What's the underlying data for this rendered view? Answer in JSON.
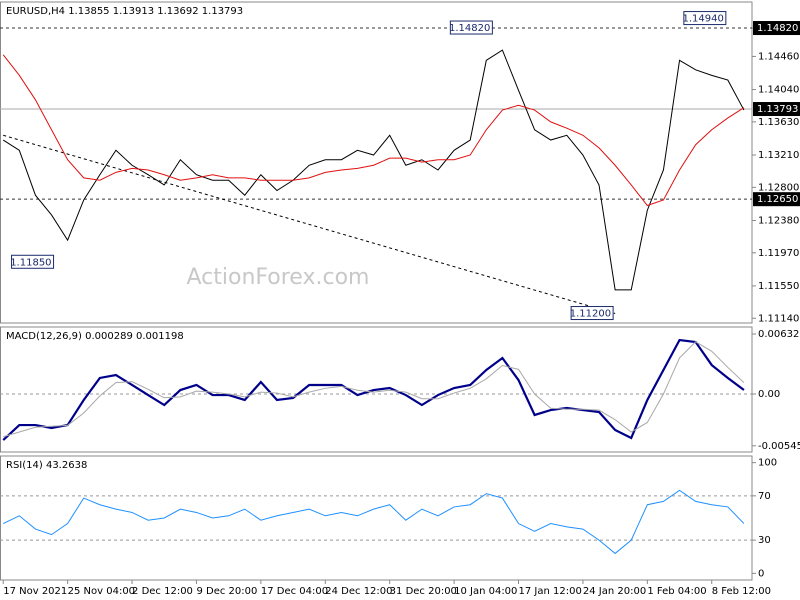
{
  "chart_data": [
    {
      "type": "line",
      "title": "EURUSD,H4  1.13855 1.13913 1.13692 1.13793",
      "watermark": "ActionForex.com",
      "x": [
        0,
        2,
        4,
        6,
        8,
        10,
        12,
        14,
        16,
        18,
        20,
        22,
        24,
        26,
        28,
        30,
        32,
        34,
        36,
        38,
        40,
        42,
        44,
        46,
        48,
        50,
        52,
        54,
        56,
        58,
        60,
        62,
        64,
        66,
        68,
        70,
        72,
        74,
        76,
        78,
        80,
        82,
        84,
        86,
        88,
        90,
        92
      ],
      "xlim": [
        -0.4,
        93
      ],
      "ylim": [
        1.1108,
        1.1515
      ],
      "yticks": [
        {
          "value": 1.1482,
          "label": "1.14820"
        },
        {
          "value": 1.1446,
          "label": "1.14460"
        },
        {
          "value": 1.1404,
          "label": "1.14040"
        },
        {
          "value": 1.1363,
          "label": "1.13630"
        },
        {
          "value": 1.1321,
          "label": "1.13210"
        },
        {
          "value": 1.128,
          "label": "1.12800"
        },
        {
          "value": 1.1238,
          "label": "1.12380"
        },
        {
          "value": 1.1197,
          "label": "1.11970"
        },
        {
          "value": 1.1155,
          "label": "1.11550"
        },
        {
          "value": 1.1114,
          "label": "1.11140"
        }
      ],
      "series": [
        {
          "color": "#000000",
          "values": [
            1.134,
            1.1327,
            1.127,
            1.1245,
            1.1213,
            1.1264,
            1.1296,
            1.1327,
            1.1308,
            1.1296,
            1.1283,
            1.1315,
            1.1296,
            1.1289,
            1.1289,
            1.127,
            1.1296,
            1.1276,
            1.1289,
            1.1308,
            1.1315,
            1.1315,
            1.1327,
            1.1321,
            1.1346,
            1.1308,
            1.1315,
            1.1302,
            1.1327,
            1.134,
            1.1441,
            1.1454,
            1.1403,
            1.1353,
            1.134,
            1.1346,
            1.1321,
            1.1283,
            1.115,
            1.115,
            1.1251,
            1.1302,
            1.1441,
            1.1429,
            1.1422,
            1.1416,
            1.1378
          ]
        },
        {
          "color": "#e01010",
          "values": [
            1.1448,
            1.1422,
            1.1391,
            1.1353,
            1.1315,
            1.1292,
            1.1289,
            1.1299,
            1.1304,
            1.1302,
            1.1296,
            1.1289,
            1.1292,
            1.1296,
            1.1292,
            1.1292,
            1.1289,
            1.1289,
            1.1289,
            1.1292,
            1.1299,
            1.1302,
            1.1304,
            1.1308,
            1.1317,
            1.1317,
            1.1312,
            1.1315,
            1.1315,
            1.1321,
            1.1353,
            1.1378,
            1.1384,
            1.1378,
            1.1363,
            1.1355,
            1.1346,
            1.133,
            1.1308,
            1.1283,
            1.1257,
            1.1264,
            1.1302,
            1.1334,
            1.1353,
            1.1368,
            1.1381
          ]
        }
      ],
      "levels": [
        {
          "value": 1.1482,
          "label": "1.14820"
        },
        {
          "value": 1.1265,
          "label": "1.12650"
        }
      ],
      "current": {
        "value": 1.13793,
        "label": "1.13793"
      },
      "annotations": [
        {
          "x": 61,
          "value": 1.1482,
          "label": "1.14820"
        },
        {
          "x": 90,
          "value": 1.1494,
          "label": "1.14940"
        },
        {
          "x": 6.5,
          "value": 1.1185,
          "label": "1.11850"
        },
        {
          "x": 76,
          "value": 1.112,
          "label": "1.11200"
        }
      ],
      "trendline": {
        "x": [
          0,
          76
        ],
        "values": [
          1.1346,
          1.112
        ]
      }
    },
    {
      "type": "line",
      "title": "MACD(12,26,9) 0.000289 0.001198",
      "x": [
        0,
        2,
        4,
        6,
        8,
        10,
        12,
        14,
        16,
        18,
        20,
        22,
        24,
        26,
        28,
        30,
        32,
        34,
        36,
        38,
        40,
        42,
        44,
        46,
        48,
        50,
        52,
        54,
        56,
        58,
        60,
        62,
        64,
        66,
        68,
        70,
        72,
        74,
        76,
        78,
        80,
        82,
        84,
        86,
        88,
        90,
        92
      ],
      "xlim": [
        -0.4,
        93
      ],
      "ylim": [
        -0.00611,
        0.00706
      ],
      "yticks": [
        {
          "value": 0.00632,
          "label": "0.00632"
        },
        {
          "value": 0,
          "label": "0.00"
        },
        {
          "value": -0.005455,
          "label": "-0.005455"
        }
      ],
      "zero_line": 0,
      "series": [
        {
          "color": "#00008b",
          "values": [
            -0.00485,
            -0.00327,
            -0.00327,
            -0.00358,
            -0.00327,
            -0.00063,
            0.00169,
            0.002,
            0.00095,
            -0.00011,
            -0.00116,
            0.00042,
            0.00095,
            -0.00011,
            -0.00011,
            -0.00063,
            0.00126,
            -0.00063,
            -0.00042,
            0.00095,
            0.00095,
            0.00095,
            -0.00011,
            0.00042,
            0.00063,
            -0.00011,
            -0.00116,
            -0.00011,
            0.00063,
            0.00095,
            0.00253,
            0.00379,
            0.00147,
            -0.00221,
            -0.00169,
            -0.00147,
            -0.00169,
            -0.0019,
            -0.00379,
            -0.00463,
            -0.00063,
            0.00253,
            0.00569,
            0.00548,
            0.00305,
            0.00169,
            0.00042
          ]
        },
        {
          "color": "#a8a8a8",
          "values": [
            -0.0045,
            -0.004,
            -0.0035,
            -0.0034,
            -0.0033,
            -0.002,
            -0.0002,
            0.0012,
            0.0013,
            0.0005,
            -0.0004,
            -0.0003,
            0.0003,
            0.0002,
            0,
            -0.0003,
            0.0002,
            0.0001,
            -0.0003,
            0.0002,
            0.0006,
            0.0008,
            0.0004,
            0.0002,
            0.0004,
            0.0002,
            -0.0005,
            -0.0005,
            0.0001,
            0.0006,
            0.0016,
            0.003,
            0.0026,
            0,
            -0.0015,
            -0.0016,
            -0.0016,
            -0.0017,
            -0.0027,
            -0.004,
            -0.003,
            0,
            0.0038,
            0.0055,
            0.0045,
            0.0028,
            0.0012
          ]
        }
      ]
    },
    {
      "type": "line",
      "title": "RSI(14) 43.2638",
      "x": [
        0,
        2,
        4,
        6,
        8,
        10,
        12,
        14,
        16,
        18,
        20,
        22,
        24,
        26,
        28,
        30,
        32,
        34,
        36,
        38,
        40,
        42,
        44,
        46,
        48,
        50,
        52,
        54,
        56,
        58,
        60,
        62,
        64,
        66,
        68,
        70,
        72,
        74,
        76,
        78,
        80,
        82,
        84,
        86,
        88,
        90,
        92
      ],
      "xlim": [
        -0.4,
        93
      ],
      "ylim": [
        -6,
        106
      ],
      "yticks": [
        0,
        30,
        70,
        100
      ],
      "levels": [
        30,
        70
      ],
      "series": [
        {
          "color": "#1e90ff",
          "values": [
            45,
            52,
            40,
            35,
            45,
            68,
            62,
            58,
            55,
            48,
            50,
            58,
            55,
            50,
            52,
            58,
            48,
            52,
            55,
            58,
            52,
            55,
            52,
            58,
            62,
            48,
            58,
            52,
            60,
            62,
            72,
            68,
            45,
            38,
            45,
            42,
            40,
            30,
            18,
            30,
            62,
            65,
            75,
            65,
            62,
            60,
            45
          ]
        }
      ],
      "xticks": [
        {
          "value": 0,
          "label": "17 Nov 2021"
        },
        {
          "value": 8,
          "label": "25 Nov 04:00"
        },
        {
          "value": 16,
          "label": "2 Dec 12:00"
        },
        {
          "value": 24,
          "label": "9 Dec 20:00"
        },
        {
          "value": 32,
          "label": "17 Dec 04:00"
        },
        {
          "value": 40,
          "label": "24 Dec 12:00"
        },
        {
          "value": 48,
          "label": "31 Dec 20:00"
        },
        {
          "value": 56,
          "label": "10 Jan 04:00"
        },
        {
          "value": 64,
          "label": "17 Jan 12:00"
        },
        {
          "value": 72,
          "label": "24 Jan 20:00"
        },
        {
          "value": 80,
          "label": "1 Feb 04:00"
        },
        {
          "value": 88,
          "label": "8 Feb 12:00"
        }
      ]
    }
  ]
}
